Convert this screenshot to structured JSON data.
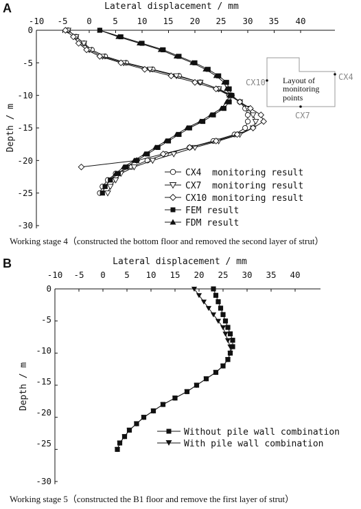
{
  "panels": [
    {
      "letter": "A",
      "caption": "Working stage 4（constructed the bottom floor and removed the second layer of strut）",
      "inset": {
        "title_lines": [
          "Layout of",
          "monitoring",
          "points"
        ],
        "points": [
          "CX10",
          "CX4",
          "CX7"
        ]
      }
    },
    {
      "letter": "B",
      "caption": "Working stage 5（constructed the B1 floor and remove the first layer of strut）"
    }
  ],
  "chart_data": [
    {
      "type": "line",
      "title": "",
      "xlabel": "Lateral displacement / mm",
      "ylabel": "Depth / m",
      "x_ticks": [
        -10,
        -5,
        0,
        5,
        10,
        15,
        20,
        25,
        30,
        35,
        40
      ],
      "y_ticks": [
        0,
        -5,
        -10,
        -15,
        -20,
        -25,
        -30
      ],
      "xlim": [
        -10,
        40
      ],
      "ylim": [
        -30,
        0
      ],
      "x_axis_position": "top",
      "grid": false,
      "legend_position": "bottom-right",
      "series": [
        {
          "name": "CX4  monitoring result",
          "marker": "circle-open",
          "points": [
            [
              -4,
              0
            ],
            [
              -2.5,
              -1
            ],
            [
              -1,
              -2
            ],
            [
              0.5,
              -3
            ],
            [
              3,
              -4
            ],
            [
              7,
              -5
            ],
            [
              12,
              -6
            ],
            [
              17,
              -7
            ],
            [
              21,
              -8
            ],
            [
              24.5,
              -9
            ],
            [
              27,
              -10
            ],
            [
              28.5,
              -11
            ],
            [
              29.5,
              -12
            ],
            [
              30,
              -13
            ],
            [
              30,
              -14
            ],
            [
              29.5,
              -15
            ],
            [
              27.5,
              -16
            ],
            [
              23.5,
              -17
            ],
            [
              19,
              -18
            ],
            [
              14.5,
              -19
            ],
            [
              11,
              -20
            ],
            [
              8,
              -21
            ],
            [
              5,
              -22
            ],
            [
              3.5,
              -23
            ],
            [
              2.5,
              -24
            ],
            [
              2,
              -25
            ]
          ]
        },
        {
          "name": "CX7  monitoring result",
          "marker": "triangle-down-open",
          "points": [
            [
              -4,
              0
            ],
            [
              -2.5,
              -1
            ],
            [
              -1,
              -2
            ],
            [
              0,
              -3
            ],
            [
              2.5,
              -4
            ],
            [
              6.5,
              -5
            ],
            [
              11.5,
              -6
            ],
            [
              16.5,
              -7
            ],
            [
              21,
              -8
            ],
            [
              24.5,
              -9
            ],
            [
              26.5,
              -10
            ],
            [
              28.5,
              -11
            ],
            [
              30,
              -12
            ],
            [
              31,
              -13
            ],
            [
              31.5,
              -14
            ],
            [
              31,
              -15
            ],
            [
              28.5,
              -16
            ],
            [
              24.5,
              -17
            ],
            [
              20,
              -18
            ],
            [
              16,
              -19
            ],
            [
              12,
              -20
            ],
            [
              8.5,
              -21
            ],
            [
              6,
              -22
            ],
            [
              5,
              -23
            ],
            [
              4,
              -24
            ],
            [
              3.5,
              -25
            ]
          ]
        },
        {
          "name": "CX10 monitoring result",
          "marker": "diamond-open",
          "points": [
            [
              -4.5,
              0
            ],
            [
              -3,
              -1
            ],
            [
              -2,
              -2
            ],
            [
              -0.5,
              -3
            ],
            [
              2,
              -4
            ],
            [
              6,
              -5
            ],
            [
              10.5,
              -6
            ],
            [
              15.5,
              -7
            ],
            [
              20,
              -8
            ],
            [
              24,
              -9
            ],
            [
              26.5,
              -10
            ],
            [
              28.5,
              -11
            ],
            [
              30.5,
              -12
            ],
            [
              32.5,
              -13
            ],
            [
              33,
              -14
            ],
            [
              31,
              -15
            ],
            [
              28,
              -16
            ],
            [
              24,
              -17
            ],
            [
              19,
              -18
            ],
            [
              14,
              -19
            ],
            [
              9,
              -20
            ],
            [
              -1.5,
              -21
            ]
          ]
        },
        {
          "name": "FEM result",
          "marker": "square-filled",
          "points": [
            [
              2,
              0
            ],
            [
              6,
              -1
            ],
            [
              10,
              -2
            ],
            [
              14,
              -3
            ],
            [
              17,
              -4
            ],
            [
              20,
              -5
            ],
            [
              22.5,
              -6
            ],
            [
              24.5,
              -7
            ],
            [
              26,
              -8
            ],
            [
              26.5,
              -9
            ],
            [
              27,
              -10
            ],
            [
              26.5,
              -11
            ],
            [
              25.5,
              -12
            ],
            [
              23.5,
              -13
            ],
            [
              21.5,
              -14
            ],
            [
              19,
              -15
            ],
            [
              17,
              -16
            ],
            [
              15,
              -17
            ],
            [
              13,
              -18
            ],
            [
              11,
              -19
            ],
            [
              9,
              -20
            ],
            [
              7,
              -21
            ],
            [
              5.5,
              -22
            ],
            [
              4,
              -23
            ],
            [
              3,
              -24
            ],
            [
              2.5,
              -25
            ]
          ]
        },
        {
          "name": "FDM result",
          "marker": "triangle-up-filled",
          "points": [
            [
              2,
              0
            ],
            [
              5.5,
              -1
            ],
            [
              9.5,
              -2
            ],
            [
              13.5,
              -3
            ],
            [
              16.5,
              -4
            ],
            [
              19.5,
              -5
            ],
            [
              22,
              -6
            ],
            [
              24,
              -7
            ],
            [
              25.5,
              -8
            ],
            [
              26,
              -9
            ],
            [
              26.5,
              -10
            ],
            [
              26,
              -11
            ],
            [
              25,
              -12
            ],
            [
              23,
              -13
            ],
            [
              21,
              -14
            ],
            [
              18.5,
              -15
            ],
            [
              16.5,
              -16
            ],
            [
              14.5,
              -17
            ],
            [
              12.5,
              -18
            ],
            [
              10.5,
              -19
            ],
            [
              8.5,
              -20
            ],
            [
              6.5,
              -21
            ],
            [
              5,
              -22
            ],
            [
              4,
              -23
            ],
            [
              3,
              -24
            ],
            [
              2.5,
              -25
            ]
          ]
        }
      ]
    },
    {
      "type": "line",
      "title": "",
      "xlabel": "Lateral displacement / mm",
      "ylabel": "Depth / m",
      "x_ticks": [
        -10,
        -5,
        0,
        5,
        10,
        15,
        20,
        25,
        30,
        35,
        40
      ],
      "y_ticks": [
        0,
        -5,
        -10,
        -15,
        -20,
        -25,
        -30
      ],
      "xlim": [
        -10,
        40
      ],
      "ylim": [
        -30,
        0
      ],
      "x_axis_position": "top",
      "grid": false,
      "legend_position": "bottom-right",
      "series": [
        {
          "name": "Without pile wall combination",
          "marker": "square-filled",
          "points": [
            [
              23,
              0
            ],
            [
              23.5,
              -1
            ],
            [
              24,
              -2
            ],
            [
              24.5,
              -3
            ],
            [
              25,
              -4
            ],
            [
              25.5,
              -5
            ],
            [
              26,
              -6
            ],
            [
              26.5,
              -7
            ],
            [
              27,
              -8
            ],
            [
              27,
              -9
            ],
            [
              26.5,
              -10
            ],
            [
              26,
              -11
            ],
            [
              25,
              -12
            ],
            [
              23.5,
              -13
            ],
            [
              21.5,
              -14
            ],
            [
              19.5,
              -15
            ],
            [
              17.5,
              -16
            ],
            [
              15,
              -17
            ],
            [
              12.5,
              -18
            ],
            [
              10.5,
              -19
            ],
            [
              8.5,
              -20
            ],
            [
              7,
              -21
            ],
            [
              5.5,
              -22
            ],
            [
              4.5,
              -23
            ],
            [
              3.5,
              -24
            ],
            [
              3,
              -25
            ]
          ]
        },
        {
          "name": "With pile wall combination",
          "marker": "triangle-down-filled",
          "points": [
            [
              19,
              0
            ],
            [
              20,
              -1
            ],
            [
              21,
              -2
            ],
            [
              22,
              -3
            ],
            [
              23,
              -4
            ],
            [
              24,
              -5
            ],
            [
              25,
              -6
            ],
            [
              25.5,
              -7
            ],
            [
              26,
              -8
            ],
            [
              26.5,
              -9
            ],
            [
              26.5,
              -10
            ],
            [
              26,
              -11
            ],
            [
              25,
              -12
            ],
            [
              23.5,
              -13
            ],
            [
              21.5,
              -14
            ],
            [
              19.5,
              -15
            ],
            [
              17.5,
              -16
            ],
            [
              15,
              -17
            ],
            [
              12.5,
              -18
            ],
            [
              10.5,
              -19
            ],
            [
              8.5,
              -20
            ],
            [
              7,
              -21
            ],
            [
              5.5,
              -22
            ],
            [
              4.5,
              -23
            ],
            [
              3.5,
              -24
            ],
            [
              3,
              -25
            ]
          ]
        }
      ]
    }
  ]
}
